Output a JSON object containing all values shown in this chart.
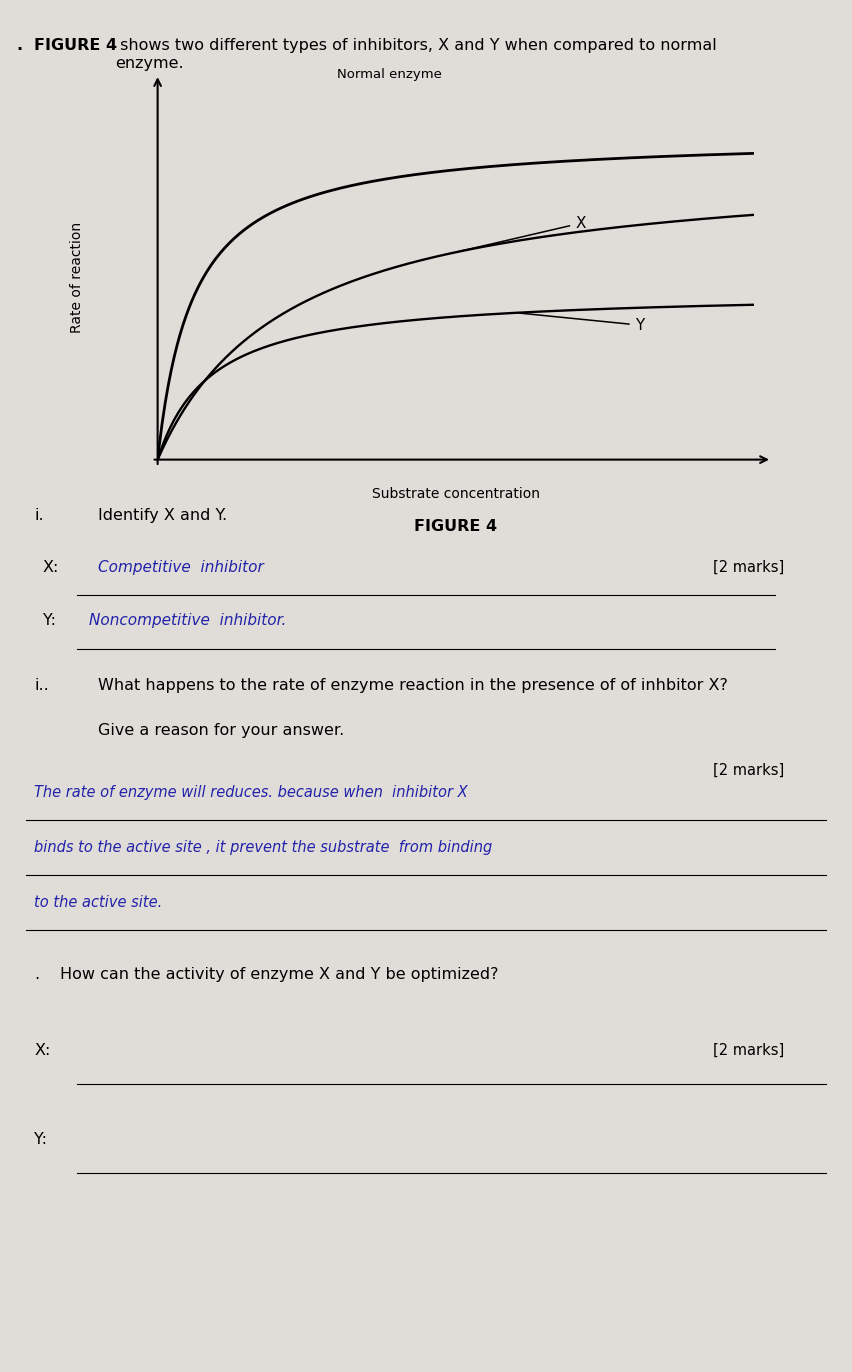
{
  "page_background": "#e0ddd8",
  "fig_width": 8.52,
  "fig_height": 13.72,
  "header_bold": "FIGURE 4",
  "header_text": " shows two different types of inhibitors, X and Y when compared to normal\nenzyme.",
  "xlabel": "Substrate concentration",
  "ylabel": "Rate of reaction",
  "figure_label": "FIGURE 4",
  "curve_normal_label": "Normal enzyme",
  "curve_x_label": "X",
  "curve_y_label": "Y",
  "question_i_prefix": "i.",
  "question_i_text": "Identify X and Y.",
  "answer_x_handwritten": "Competitive  inhibitor",
  "answer_y_handwritten": "Noncompetitive  inhibitor.",
  "marks_2a": "[2 marks]",
  "question_ii_prefix": "i.",
  "question_ii_line1": "What happens to the rate of enzyme reaction in the presence of of inhbitor X?",
  "question_ii_line2": "Give a reason for your answer.",
  "marks_2b": "[2 marks]",
  "answer_ii_text_line1": "The rate of enzyme will reduces. because when  inhibitor X",
  "answer_ii_text_line2": "binds to the active site , it prevent the substrate  from binding",
  "answer_ii_text_line3": "to the active site.",
  "question_iii_prefix": ".",
  "question_iii_text": "How can the activity of enzyme X and Y be optimized?",
  "answer_x_label": "X:",
  "answer_y_label": "Y:",
  "marks_3": "[2 marks]"
}
